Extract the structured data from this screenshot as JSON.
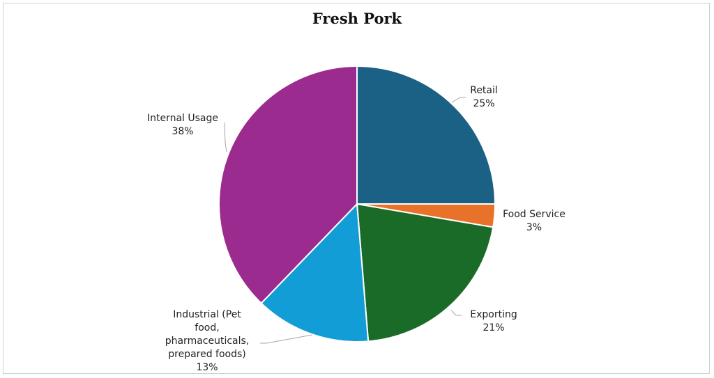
{
  "chart_data": {
    "type": "pie",
    "title": "Fresh Pork",
    "slices": [
      {
        "label": "Retail",
        "pct_label": "25%",
        "value": 25.0,
        "color": "#1a6185"
      },
      {
        "label": "Food Service",
        "pct_label": "3%",
        "value": 2.7,
        "color": "#e8722a"
      },
      {
        "label": "Exporting",
        "pct_label": "21%",
        "value": 21.0,
        "color": "#1b6b28"
      },
      {
        "label": "Industrial (Pet food, pharmaceuticals, prepared foods)",
        "pct_label": "13%",
        "value": 13.5,
        "color": "#139dd6"
      },
      {
        "label": "Internal Usage",
        "pct_label": "38%",
        "value": 37.8,
        "color": "#9b2b8f"
      }
    ]
  }
}
